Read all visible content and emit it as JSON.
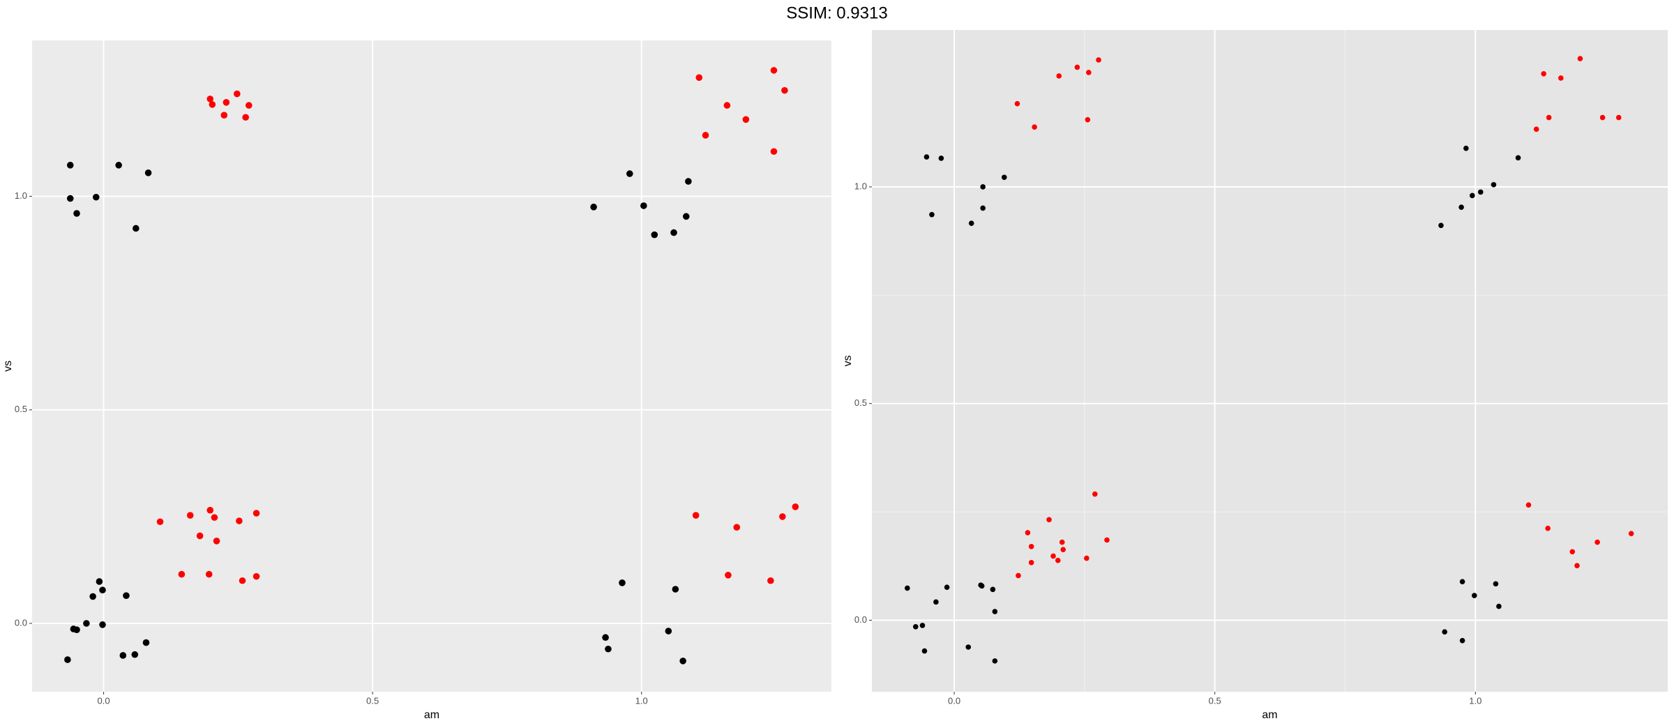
{
  "title": "SSIM: 0.9313",
  "chart_data": [
    {
      "type": "scatter",
      "xlabel": "am",
      "ylabel": "vs",
      "xlim": [
        -0.133,
        1.353
      ],
      "ylim": [
        -0.16,
        1.365
      ],
      "xticks": [
        {
          "value": 0,
          "label": "0.0"
        },
        {
          "value": 0.5,
          "label": "0.5"
        },
        {
          "value": 1,
          "label": "1.0"
        }
      ],
      "yticks": [
        {
          "value": 0,
          "label": "0.0"
        },
        {
          "value": 0.5,
          "label": "0.5"
        },
        {
          "value": 1,
          "label": "1.0"
        }
      ],
      "grid": true,
      "minor_grid": false,
      "series": [
        {
          "color": "#000000",
          "x": [
            -0.062,
            -0.062,
            -0.05,
            -0.014,
            0.028,
            0.06,
            0.083,
            0.911,
            0.978,
            1.004,
            1.024,
            1.06,
            1.083,
            1.087,
            -0.067,
            -0.056,
            -0.05,
            -0.032,
            -0.02,
            -0.008,
            -0.002,
            -0.002,
            0.042,
            0.036,
            0.058,
            0.079,
            0.933,
            0.938,
            0.964,
            1.05,
            1.063,
            1.077
          ],
          "values": [
            1.073,
            0.995,
            0.96,
            0.998,
            1.073,
            0.925,
            1.055,
            0.975,
            1.053,
            0.978,
            0.91,
            0.915,
            0.953,
            1.035,
            -0.085,
            -0.013,
            -0.015,
            0,
            0.063,
            0.098,
            0.078,
            -0.003,
            0.065,
            -0.075,
            -0.073,
            -0.045,
            -0.033,
            -0.06,
            0.095,
            -0.018,
            0.08,
            -0.088
          ]
        },
        {
          "color": "#ff0000",
          "x": [
            0.198,
            0.202,
            0.228,
            0.248,
            0.224,
            0.264,
            0.27,
            1.107,
            1.119,
            1.159,
            1.194,
            1.246,
            1.266,
            1.246,
            0.105,
            0.145,
            0.161,
            0.179,
            0.198,
            0.206,
            0.21,
            0.196,
            0.252,
            0.258,
            0.284,
            0.284,
            1.101,
            1.161,
            1.177,
            1.24,
            1.262,
            1.286
          ],
          "values": [
            1.228,
            1.215,
            1.22,
            1.24,
            1.19,
            1.185,
            1.213,
            1.278,
            1.143,
            1.213,
            1.18,
            1.295,
            1.248,
            1.105,
            0.238,
            0.115,
            0.253,
            0.205,
            0.265,
            0.248,
            0.193,
            0.115,
            0.24,
            0.1,
            0.258,
            0.11,
            0.253,
            0.113,
            0.225,
            0.1,
            0.25,
            0.273
          ]
        }
      ]
    },
    {
      "type": "scatter",
      "xlabel": "am",
      "ylabel": "vs",
      "xlim": [
        -0.158,
        1.369
      ],
      "ylim": [
        -0.165,
        1.362
      ],
      "xticks": [
        {
          "value": 0,
          "label": "0.0"
        },
        {
          "value": 0.5,
          "label": "0.5"
        },
        {
          "value": 1,
          "label": "1.0"
        }
      ],
      "yticks": [
        {
          "value": 0,
          "label": "0.0"
        },
        {
          "value": 0.5,
          "label": "0.5"
        },
        {
          "value": 1,
          "label": "1.0"
        }
      ],
      "grid": true,
      "minor_grid": true,
      "series": [
        {
          "color": "#000000",
          "x": [
            -0.053,
            -0.025,
            -0.043,
            0.033,
            0.055,
            0.055,
            0.096,
            0.934,
            0.973,
            0.982,
            0.994,
            1.01,
            1.035,
            1.082,
            -0.09,
            -0.074,
            -0.061,
            -0.057,
            -0.035,
            -0.014,
            0.027,
            0.051,
            0.053,
            0.074,
            0.078,
            0.078,
            0.941,
            0.975,
            0.975,
            0.998,
            1.039,
            1.045
          ],
          "values": [
            1.069,
            1.066,
            0.936,
            0.916,
            1.0,
            0.951,
            1.022,
            0.911,
            0.953,
            1.089,
            0.98,
            0.988,
            1.005,
            1.067,
            0.074,
            -0.015,
            -0.012,
            -0.071,
            0.042,
            0.076,
            -0.062,
            0.081,
            0.079,
            0.071,
            0.02,
            -0.094,
            -0.027,
            -0.047,
            0.089,
            0.057,
            0.084,
            0.032
          ]
        },
        {
          "color": "#ff0000",
          "x": [
            0.121,
            0.154,
            0.201,
            0.236,
            0.258,
            0.277,
            0.256,
            1.117,
            1.131,
            1.141,
            1.164,
            1.201,
            1.244,
            1.275,
            0.123,
            0.141,
            0.148,
            0.148,
            0.182,
            0.19,
            0.199,
            0.207,
            0.209,
            0.254,
            0.27,
            0.293,
            1.102,
            1.139,
            1.186,
            1.195,
            1.234,
            1.299
          ],
          "values": [
            1.192,
            1.138,
            1.256,
            1.276,
            1.264,
            1.293,
            1.155,
            1.133,
            1.261,
            1.16,
            1.251,
            1.296,
            1.16,
            1.16,
            0.103,
            0.202,
            0.17,
            0.133,
            0.232,
            0.148,
            0.138,
            0.18,
            0.163,
            0.143,
            0.291,
            0.185,
            0.266,
            0.212,
            0.158,
            0.126,
            0.18,
            0.2
          ]
        }
      ]
    }
  ]
}
